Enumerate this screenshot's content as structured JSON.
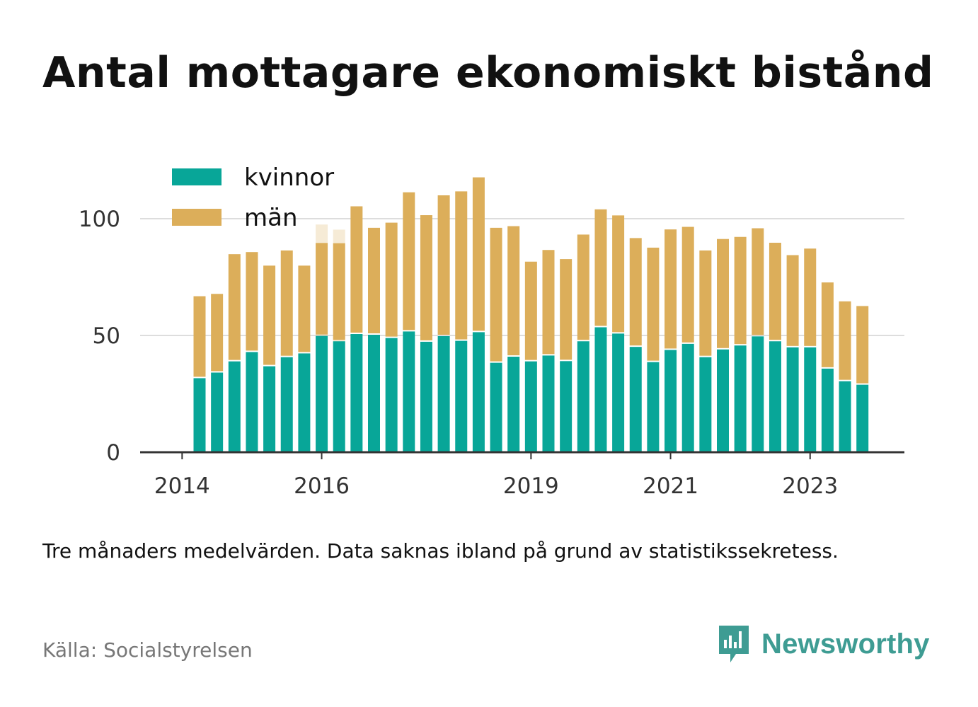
{
  "title": "Antal mottagare ekonomiskt bistånd",
  "note": "Tre månaders medelvärden. Data saknas ibland på grund av statistikssekretess.",
  "source": "Källa: Socialstyrelsen",
  "brand": {
    "name": "Newsworthy",
    "icon": "newsworthy-logo-icon",
    "color": "#3e9c93"
  },
  "colors": {
    "kvinnor": "#08a698",
    "man": "#dcae5a",
    "grid": "#dddddd",
    "axis": "#333333"
  },
  "chart_data": {
    "type": "bar",
    "stacked": true,
    "legend": {
      "position": "top-left",
      "entries": [
        "kvinnor",
        "män"
      ]
    },
    "grid": true,
    "ylim": [
      0,
      120
    ],
    "yticks": [
      0,
      50,
      100
    ],
    "xticks": [
      "2014",
      "2016",
      "2019",
      "2021",
      "2023"
    ],
    "xlabel": "",
    "ylabel": "",
    "categories": [
      "2014-Q2",
      "2014-Q3",
      "2014-Q4",
      "2015-Q1",
      "2015-Q2",
      "2015-Q3",
      "2015-Q4",
      "2016-Q1",
      "2016-Q2",
      "2016-Q3",
      "2016-Q4",
      "2017-Q1",
      "2017-Q2",
      "2017-Q3",
      "2017-Q4",
      "2018-Q1",
      "2018-Q2",
      "2018-Q3",
      "2018-Q4",
      "2019-Q1",
      "2019-Q2",
      "2019-Q3",
      "2019-Q4",
      "2020-Q1",
      "2020-Q2",
      "2020-Q3",
      "2020-Q4",
      "2021-Q1",
      "2021-Q2",
      "2021-Q3",
      "2021-Q4",
      "2022-Q1",
      "2022-Q2",
      "2022-Q3",
      "2022-Q4",
      "2023-Q1",
      "2023-Q2",
      "2023-Q3",
      "2023-Q4"
    ],
    "series": [
      {
        "name": "kvinnor",
        "values": [
          31.7,
          34.1,
          38.9,
          42.9,
          36.8,
          40.7,
          42.3,
          49.8,
          47.5,
          50.6,
          50.3,
          48.9,
          51.7,
          47.3,
          49.7,
          47.7,
          51.4,
          38.3,
          40.9,
          38.9,
          41.4,
          39.0,
          47.5,
          53.5,
          50.8,
          45.1,
          38.6,
          43.8,
          46.4,
          40.7,
          44.0,
          45.7,
          49.6,
          47.5,
          44.9,
          44.9,
          35.8,
          30.4,
          28.9
        ]
      },
      {
        "name": "män",
        "values": [
          35.1,
          33.7,
          45.9,
          42.8,
          43.1,
          45.7,
          37.6,
          39.8,
          42.0,
          54.7,
          45.8,
          49.4,
          59.6,
          54.2,
          60.3,
          64.0,
          66.3,
          57.8,
          55.9,
          42.7,
          45.2,
          43.7,
          45.7,
          50.5,
          50.6,
          46.6,
          49.0,
          51.6,
          50.1,
          45.7,
          47.3,
          46.5,
          46.3,
          42.2,
          39.5,
          42.3,
          36.9,
          34.2,
          33.7
        ]
      }
    ],
    "suppressed_overlay": {
      "categories": [
        "2016-Q1",
        "2016-Q2"
      ],
      "values": [
        97.5,
        95.3
      ]
    }
  }
}
